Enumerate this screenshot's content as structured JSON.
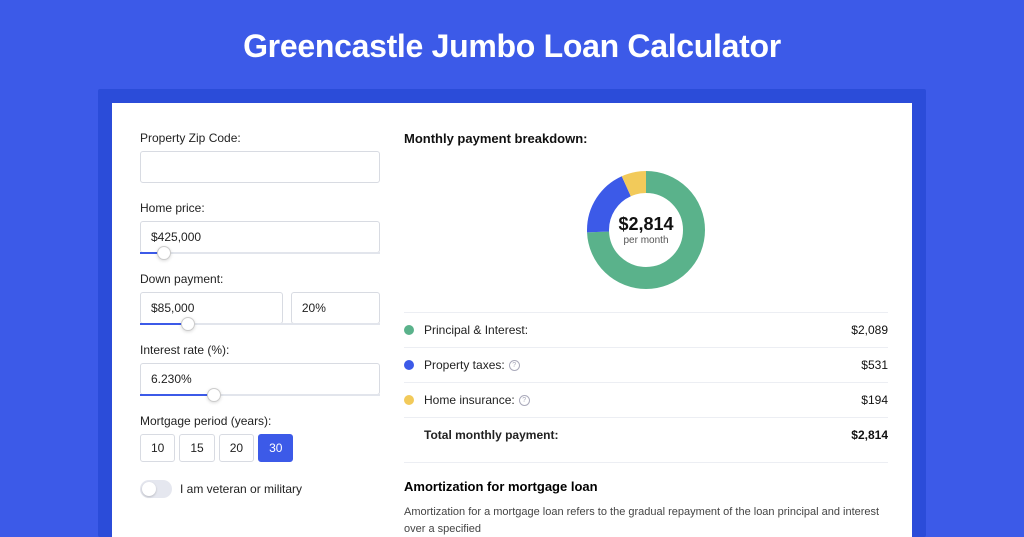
{
  "page": {
    "title": "Greencastle Jumbo Loan Calculator",
    "background_color": "#3c5ae8",
    "outer_card_color": "#2b4cd9",
    "card_color": "#ffffff"
  },
  "form": {
    "zip": {
      "label": "Property Zip Code:",
      "value": ""
    },
    "home_price": {
      "label": "Home price:",
      "value": "$425,000",
      "slider_pct": 10
    },
    "down_payment": {
      "label": "Down payment:",
      "value": "$85,000",
      "percent": "20%",
      "slider_pct": 20
    },
    "interest_rate": {
      "label": "Interest rate (%):",
      "value": "6.230%",
      "slider_pct": 31
    },
    "mortgage_period": {
      "label": "Mortgage period (years):",
      "options": [
        "10",
        "15",
        "20",
        "30"
      ],
      "selected": "30"
    },
    "veteran": {
      "label": "I am veteran or military",
      "checked": false
    }
  },
  "breakdown": {
    "title": "Monthly payment breakdown:",
    "center_amount": "$2,814",
    "center_sub": "per month",
    "donut": {
      "size": 128,
      "radius": 48,
      "stroke_width": 22,
      "segments": [
        {
          "key": "principal_interest",
          "value": 2089,
          "color": "#5ab28b"
        },
        {
          "key": "property_taxes",
          "value": 531,
          "color": "#3c5ae8"
        },
        {
          "key": "home_insurance",
          "value": 194,
          "color": "#f2ca5a"
        }
      ]
    },
    "items": [
      {
        "label": "Principal & Interest:",
        "value": "$2,089",
        "color": "#5ab28b",
        "info": false
      },
      {
        "label": "Property taxes:",
        "value": "$531",
        "color": "#3c5ae8",
        "info": true
      },
      {
        "label": "Home insurance:",
        "value": "$194",
        "color": "#f2ca5a",
        "info": true
      }
    ],
    "total": {
      "label": "Total monthly payment:",
      "value": "$2,814"
    }
  },
  "amortization": {
    "title": "Amortization for mortgage loan",
    "body": "Amortization for a mortgage loan refers to the gradual repayment of the loan principal and interest over a specified"
  }
}
